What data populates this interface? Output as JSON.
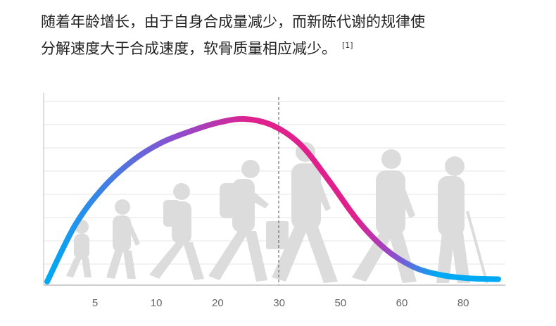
{
  "caption": {
    "line1": "随着年龄增长，由于自身合成量减少，而新陈代谢的规律使",
    "line2": "分解速度大于合成速度，软骨质量相应减少。",
    "reference": "[1]"
  },
  "chart_data": {
    "type": "line",
    "title": "",
    "xlabel": "",
    "ylabel": "",
    "x_ticks": [
      "5",
      "10",
      "20",
      "30",
      "50",
      "60",
      "80"
    ],
    "highlight_tick": "30",
    "grid": true,
    "curve_gradient": [
      "#00a9f4",
      "#8b4fd0",
      "#e0208c"
    ],
    "series": [
      {
        "x": [
          0,
          0.5,
          1,
          1.5,
          2,
          2.5,
          3,
          3.5,
          4,
          4.5,
          5,
          5.5,
          6,
          6.5,
          7,
          7.5,
          8
        ],
        "y": [
          0.0,
          0.35,
          0.58,
          0.74,
          0.85,
          0.92,
          0.975,
          1.0,
          0.96,
          0.84,
          0.62,
          0.38,
          0.2,
          0.09,
          0.04,
          0.02,
          0.015
        ]
      }
    ]
  }
}
